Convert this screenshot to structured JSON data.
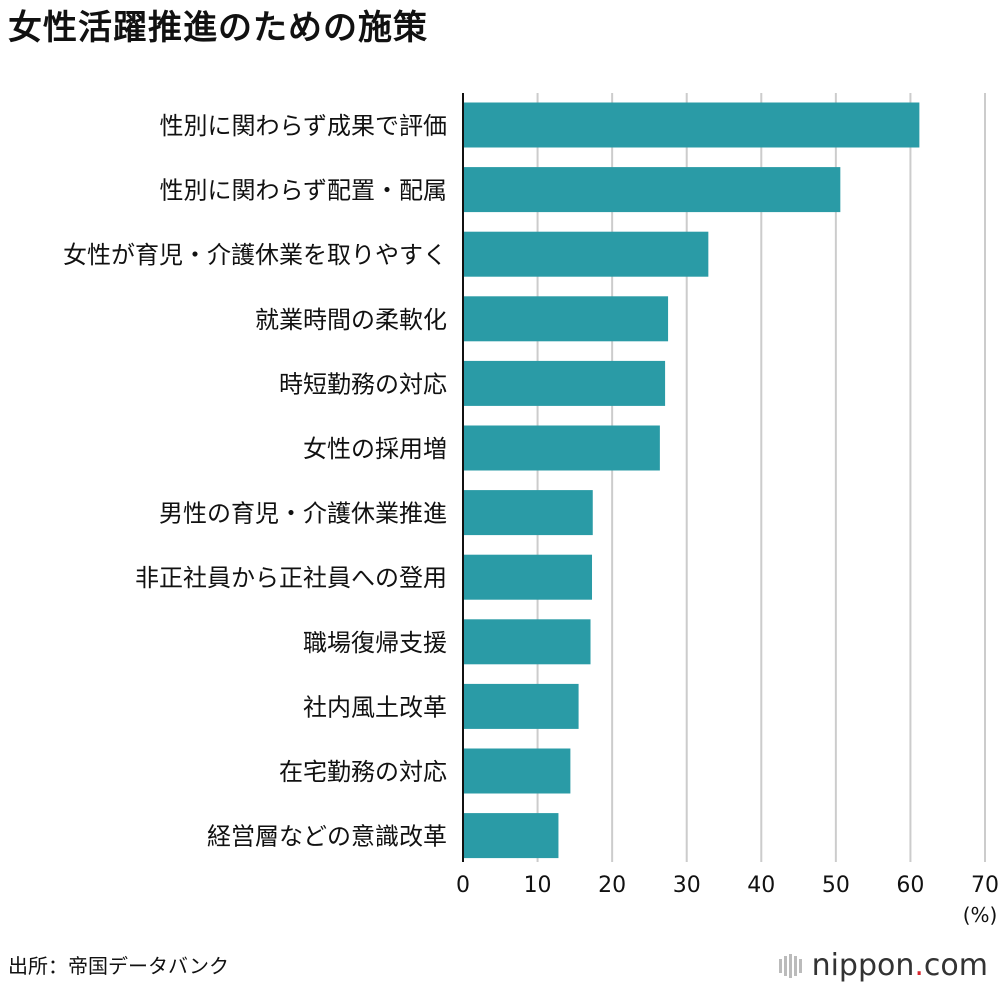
{
  "title": "女性活躍推進のための施策",
  "source": "出所：帝国データバンク",
  "brand": {
    "name": "nippon",
    "dot": ".",
    "suffix": "com"
  },
  "colors": {
    "bar": "#2a9ba6",
    "grid": "#cccccc",
    "axis": "#111111",
    "accent": "#d8262e"
  },
  "chart_data": {
    "type": "bar",
    "orientation": "horizontal",
    "title": "女性活躍推進のための施策",
    "unit_label": "(%)",
    "xlim": [
      0,
      70
    ],
    "ticks": [
      0,
      10,
      20,
      30,
      40,
      50,
      60,
      70
    ],
    "grid": true,
    "categories": [
      "性別に関わらず成果で評価",
      "性別に関わらず配置・配属",
      "女性が育児・介護休業を取りやすく",
      "就業時間の柔軟化",
      "時短勤務の対応",
      "女性の採用増",
      "男性の育児・介護休業推進",
      "非正社員から正社員への登用",
      "職場復帰支援",
      "社内風土改革",
      "在宅勤務の対応",
      "経営層などの意識改革"
    ],
    "values": [
      61.2,
      50.6,
      32.9,
      27.5,
      27.1,
      26.4,
      17.4,
      17.3,
      17.1,
      15.5,
      14.4,
      12.8
    ]
  }
}
